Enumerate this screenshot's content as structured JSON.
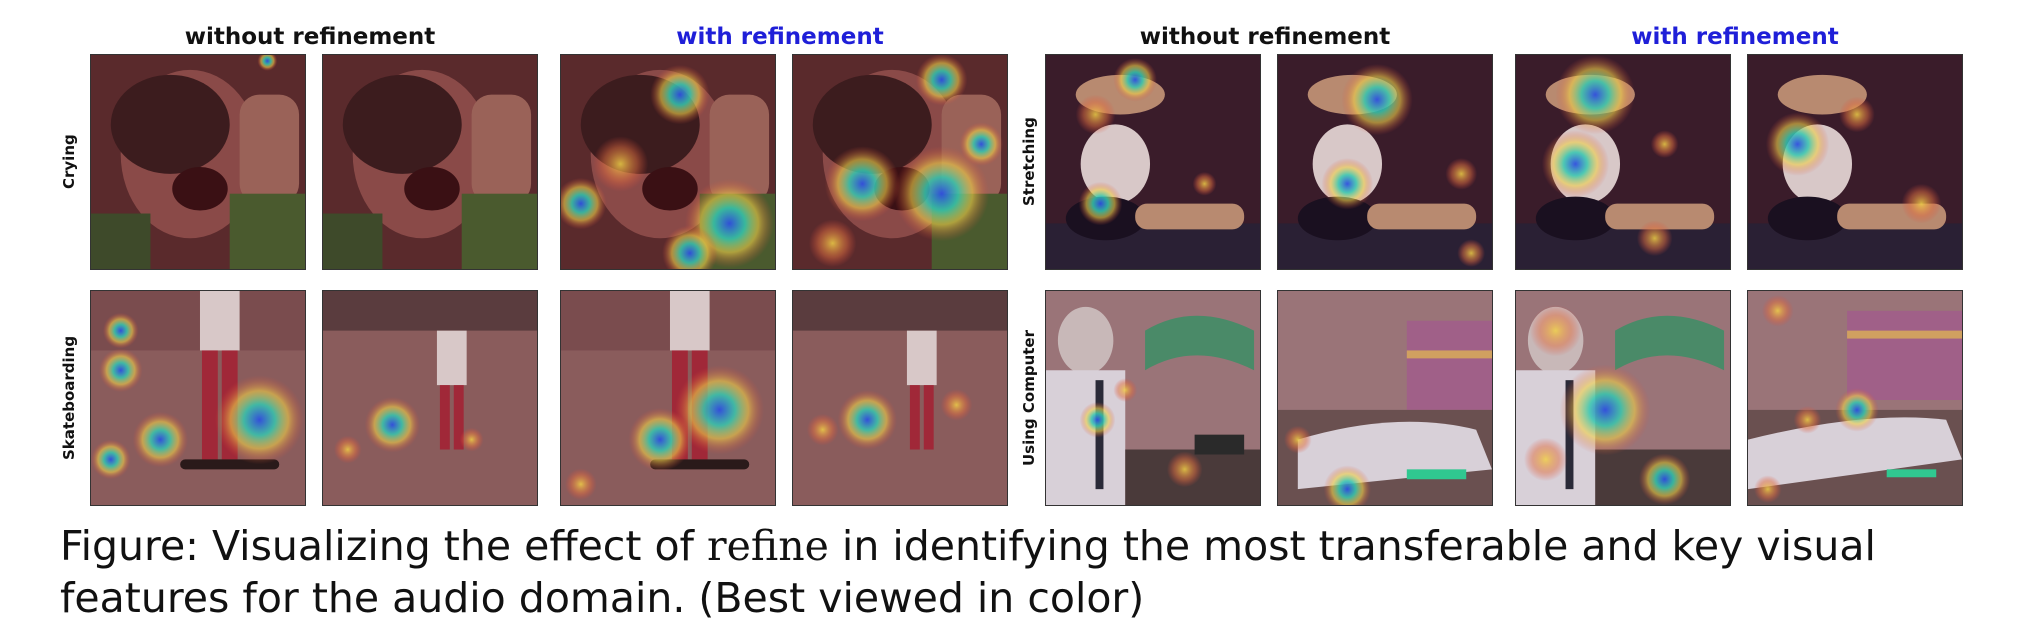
{
  "figure": {
    "headers": {
      "left_without": "without refinement",
      "left_with": "with refinement",
      "right_without": "without refinement",
      "right_with": "with refinement"
    },
    "row_labels": {
      "crying": "Crying",
      "skateboarding": "Skateboarding",
      "stretching": "Stretching",
      "using_computer": "Using Computer"
    },
    "colors": {
      "header_blue": "#1f1fd8",
      "overlay_tint": "#7a2a30",
      "heat_hot": "#2f4fe0",
      "heat_mid": "#35c8b0",
      "heat_warm": "#f0d048"
    }
  },
  "caption": {
    "prefix": "Figure: Visualizing the effect of ",
    "keyword": "refine",
    "suffix": " in identifying the most transferable and key visual features for the audio domain. (Best viewed in color)"
  }
}
